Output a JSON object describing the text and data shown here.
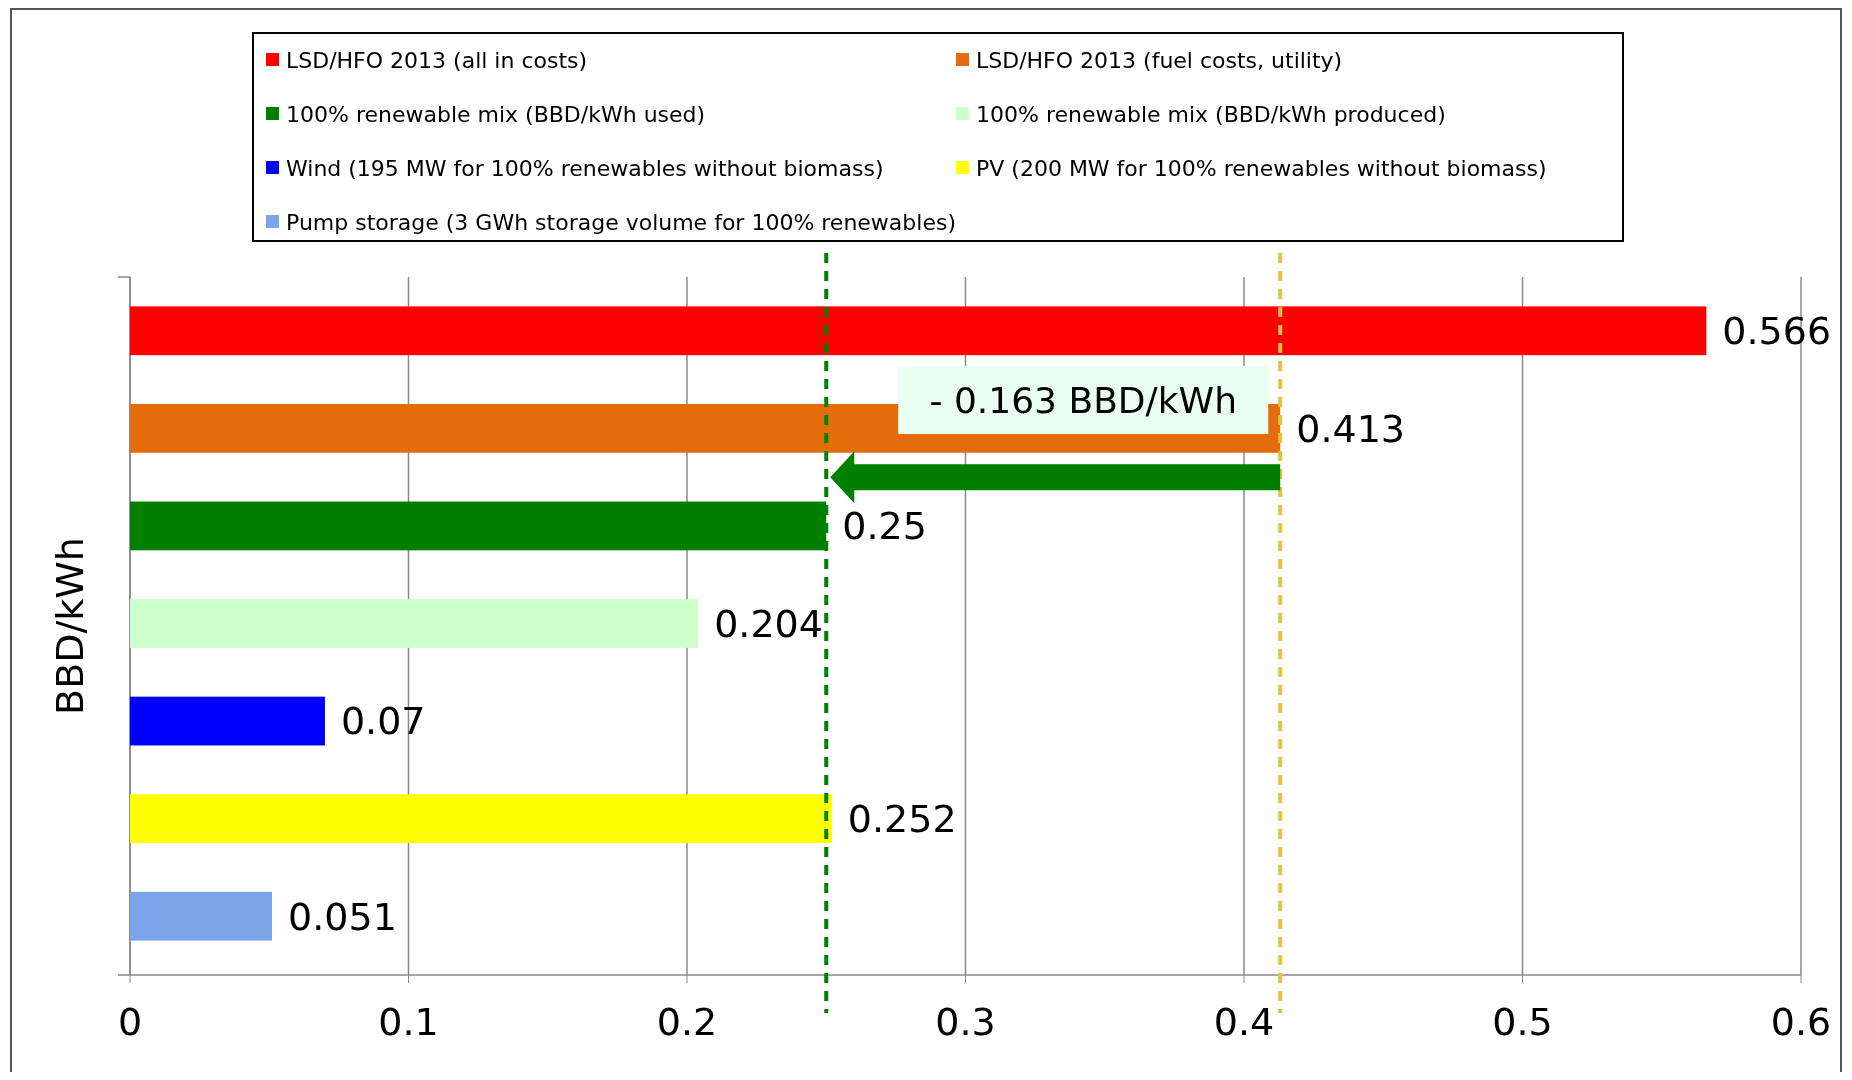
{
  "chart_data": {
    "type": "bar",
    "orientation": "horizontal",
    "ylabel": "BBD/kWh",
    "categories": [
      null,
      null,
      null,
      null,
      null,
      null,
      null
    ],
    "series": [
      {
        "name": "LSD/HFO 2013 (all in costs)",
        "color": "#ff0000",
        "values": [
          0.566,
          null,
          null,
          null,
          null,
          null,
          null
        ]
      },
      {
        "name": "LSD/HFO 2013 (fuel costs, utility)",
        "color": "#e46c0a",
        "values": [
          null,
          0.413,
          null,
          null,
          null,
          null,
          null
        ]
      },
      {
        "name": "100% renewable mix (BBD/kWh used)",
        "color": "#007f00",
        "values": [
          null,
          null,
          0.25,
          null,
          null,
          null,
          null
        ]
      },
      {
        "name": "100% renewable mix (BBD/kWh produced)",
        "color": "#ccffcc",
        "values": [
          null,
          null,
          null,
          0.204,
          null,
          null,
          null
        ]
      },
      {
        "name": "Wind (195 MW for 100% renewables without biomass)",
        "color": "#0000ff",
        "values": [
          null,
          null,
          null,
          null,
          0.07,
          null,
          null
        ]
      },
      {
        "name": "PV (200 MW for 100% renewables without biomass)",
        "color": "#ffff00",
        "values": [
          null,
          null,
          null,
          null,
          null,
          0.252,
          null
        ]
      },
      {
        "name": "Pump storage (3 GWh storage volume for 100% renewables)",
        "color": "#7aa5e8",
        "values": [
          null,
          null,
          null,
          null,
          null,
          null,
          0.051
        ]
      }
    ],
    "xlim": [
      0,
      0.6
    ],
    "xticks": [
      0,
      0.1,
      0.2,
      0.3,
      0.4,
      0.5,
      0.6
    ],
    "grid": "x",
    "data_labels": true,
    "legend": "top",
    "ref_lines": [
      {
        "axis": "x",
        "value": 0.25,
        "color": "#008000",
        "line_style": "dashed"
      },
      {
        "axis": "x",
        "value": 0.413,
        "color": "#e6c040",
        "line_style": "dashed"
      }
    ],
    "annotations": [
      "- 0.163 BBD/kWh"
    ]
  }
}
